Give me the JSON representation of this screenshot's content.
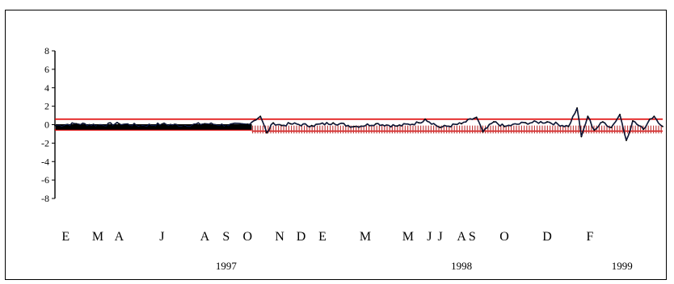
{
  "chart_data": {
    "type": "line",
    "title": "",
    "xlabel": "",
    "ylabel": "",
    "ylim": [
      -8,
      8
    ],
    "yticks": [
      8,
      6,
      4,
      2,
      0,
      -2,
      -4,
      -6,
      -8
    ],
    "grid": false,
    "legend": "none",
    "colors": {
      "series": "#000000",
      "series_accent": "#1f3fbf",
      "band": "#e00000",
      "markers": "#c04040"
    },
    "x_month_labels": [
      "E",
      "M",
      "A",
      "J",
      "A",
      "S",
      "O",
      "N",
      "D",
      "E",
      "M",
      "M",
      "J",
      "J",
      "A",
      "S",
      "O",
      "D",
      "F"
    ],
    "x_month_positions": [
      0.5,
      2.0,
      3.0,
      5.0,
      7.0,
      8.0,
      9.0,
      10.5,
      11.5,
      12.5,
      14.5,
      16.5,
      17.5,
      18.0,
      19.0,
      19.5,
      21.0,
      23.0,
      25.0
    ],
    "x_year_labels": [
      "1997",
      "1998",
      "1999"
    ],
    "x_year_positions": [
      8.0,
      19.0,
      26.5
    ],
    "x_range": [
      0,
      28.4
    ],
    "upper_band": 0.6,
    "lower_band_1997": -0.55,
    "lower_band_later": -0.7,
    "band_break_x": 9.2,
    "series": [
      {
        "name": "",
        "x": [
          0,
          1,
          2,
          3,
          4,
          5,
          6,
          7,
          8,
          9,
          9.6,
          9.9,
          10.2,
          10.6,
          11,
          12,
          13,
          14,
          15,
          16,
          17,
          17.3,
          18,
          19,
          19.7,
          20,
          20.5,
          21,
          22,
          23,
          24,
          24.4,
          24.6,
          24.9,
          25.2,
          25.6,
          26,
          26.4,
          26.7,
          27,
          27.5,
          27.8,
          28,
          28.4
        ],
        "values": [
          -0.1,
          0.1,
          -0.05,
          0.1,
          -0.1,
          0.05,
          -0.1,
          0.1,
          -0.05,
          0.05,
          0.9,
          -0.9,
          0.2,
          -0.1,
          0.1,
          -0.1,
          0.2,
          -0.2,
          0.1,
          -0.15,
          0.2,
          0.6,
          -0.3,
          0.1,
          0.8,
          -0.8,
          0.3,
          -0.2,
          0.2,
          0.3,
          -0.2,
          1.8,
          -1.3,
          0.9,
          -0.6,
          0.3,
          -0.3,
          1.1,
          -1.7,
          0.4,
          -0.5,
          0.6,
          0.9,
          -0.2
        ]
      }
    ]
  }
}
